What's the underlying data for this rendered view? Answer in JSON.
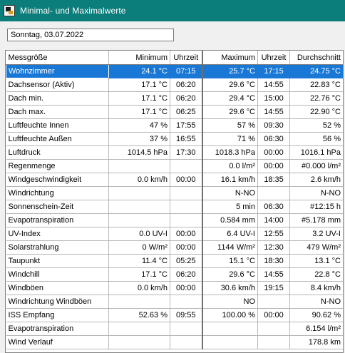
{
  "window": {
    "title": "Minimal- und Maximalwerte",
    "icon": "weather-station-app-icon"
  },
  "date_display": "Sonntag, 03.07.2022",
  "table": {
    "headers": {
      "name": "Messgröße",
      "min": "Minimum",
      "min_time": "Uhrzeit",
      "max": "Maximum",
      "max_time": "Uhrzeit",
      "avg": "Durchschnitt"
    },
    "selected_row": 0,
    "rows": [
      {
        "name": "Wohnzimmer",
        "min": "24.1 °C",
        "min_time": "07:15",
        "max": "25.7 °C",
        "max_time": "17:15",
        "avg": "24.75 °C"
      },
      {
        "name": "Dachsensor (Aktiv)",
        "min": "17.1 °C",
        "min_time": "06:20",
        "max": "29.6 °C",
        "max_time": "14:55",
        "avg": "22.83 °C"
      },
      {
        "name": "Dach min.",
        "min": "17.1 °C",
        "min_time": "06:20",
        "max": "29.4 °C",
        "max_time": "15:00",
        "avg": "22.76 °C"
      },
      {
        "name": "Dach max.",
        "min": "17.1 °C",
        "min_time": "06:25",
        "max": "29.6 °C",
        "max_time": "14:55",
        "avg": "22.90 °C"
      },
      {
        "name": "Luftfeuchte Innen",
        "min": "47 %",
        "min_time": "17:55",
        "max": "57 %",
        "max_time": "09:30",
        "avg": "52 %"
      },
      {
        "name": "Luftfeuchte Außen",
        "min": "37 %",
        "min_time": "16:55",
        "max": "71 %",
        "max_time": "06:30",
        "avg": "56 %"
      },
      {
        "name": "Luftdruck",
        "min": "1014.5 hPa",
        "min_time": "17:30",
        "max": "1018.3 hPa",
        "max_time": "00:00",
        "avg": "1016.1 hPa"
      },
      {
        "name": "Regenmenge",
        "min": "",
        "min_time": "",
        "max": "0.0 l/m²",
        "max_time": "00:00",
        "avg": "#0.000 l/m²"
      },
      {
        "name": "Windgeschwindigkeit",
        "min": "0.0 km/h",
        "min_time": "00:00",
        "max": "16.1 km/h",
        "max_time": "18:35",
        "avg": "2.6 km/h"
      },
      {
        "name": "Windrichtung",
        "min": "",
        "min_time": "",
        "max": "N-NO",
        "max_time": "",
        "avg": "N-NO"
      },
      {
        "name": "Sonnenschein-Zeit",
        "min": "",
        "min_time": "",
        "max": "5 min",
        "max_time": "06:30",
        "avg": "#12:15 h"
      },
      {
        "name": "Evapotranspiration",
        "min": "",
        "min_time": "",
        "max": "0.584 mm",
        "max_time": "14:00",
        "avg": "#5.178 mm"
      },
      {
        "name": "UV-Index",
        "min": "0.0 UV-I",
        "min_time": "00:00",
        "max": "6.4 UV-I",
        "max_time": "12:55",
        "avg": "3.2 UV-I"
      },
      {
        "name": "Solarstrahlung",
        "min": "0 W/m²",
        "min_time": "00:00",
        "max": "1144 W/m²",
        "max_time": "12:30",
        "avg": "479 W/m²"
      },
      {
        "name": "Taupunkt",
        "min": "11.4 °C",
        "min_time": "05:25",
        "max": "15.1 °C",
        "max_time": "18:30",
        "avg": "13.1 °C"
      },
      {
        "name": "Windchill",
        "min": "17.1 °C",
        "min_time": "06:20",
        "max": "29.6 °C",
        "max_time": "14:55",
        "avg": "22.8 °C"
      },
      {
        "name": "Windböen",
        "min": "0.0 km/h",
        "min_time": "00:00",
        "max": "30.6 km/h",
        "max_time": "19:15",
        "avg": "8.4 km/h"
      },
      {
        "name": "Windrichtung Windböen",
        "min": "",
        "min_time": "",
        "max": "NO",
        "max_time": "",
        "avg": "N-NO"
      },
      {
        "name": "ISS Empfang",
        "min": "52.63 %",
        "min_time": "09:55",
        "max": "100.00 %",
        "max_time": "00:00",
        "avg": "90.62 %"
      },
      {
        "name": "Evapotranspiration",
        "min": "",
        "min_time": "",
        "max": "",
        "max_time": "",
        "avg": "6.154 l/m²"
      },
      {
        "name": "Wind Verlauf",
        "min": "",
        "min_time": "",
        "max": "",
        "max_time": "",
        "avg": "178.8 km"
      }
    ]
  },
  "colors": {
    "titlebar": "#0b7d7a",
    "selection": "#1978d6"
  }
}
